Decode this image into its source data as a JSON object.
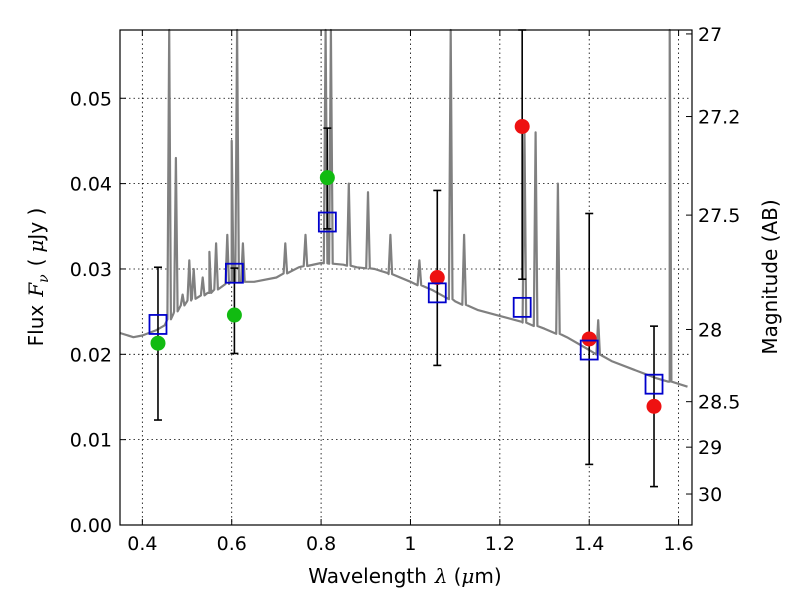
{
  "chart_data": {
    "type": "scatter",
    "title": "",
    "xlabel": {
      "main": "Wavelength",
      "symbol": "λ",
      "unit_open": "(",
      "unit_mu": "μ",
      "unit_rest": "m)"
    },
    "ylabel": {
      "main": "Flux",
      "symbol": "F",
      "sub": "ν",
      "unit_open": "(",
      "unit_mu": "μ",
      "unit_rest": "Jy )"
    },
    "y2label": "Magnitude (AB)",
    "xlim": [
      0.35,
      1.63
    ],
    "ylim": [
      0.0,
      0.058
    ],
    "grid": true,
    "x_ticks": [
      0.4,
      0.6,
      0.8,
      1.0,
      1.2,
      1.4,
      1.6
    ],
    "x_tick_labels": [
      "0.4",
      "0.6",
      "0.8",
      "1",
      "1.2",
      "1.4",
      "1.6"
    ],
    "y_ticks": [
      0.0,
      0.01,
      0.02,
      0.03,
      0.04,
      0.05
    ],
    "y_tick_labels": [
      "0.00",
      "0.01",
      "0.02",
      "0.03",
      "0.04",
      "0.05"
    ],
    "y2_ticks": [
      {
        "flux": 0.05754,
        "label": "27"
      },
      {
        "flux": 0.04786,
        "label": "27.2"
      },
      {
        "flux": 0.03631,
        "label": "27.5"
      },
      {
        "flux": 0.02291,
        "label": "28"
      },
      {
        "flux": 0.01445,
        "label": "28.5"
      },
      {
        "flux": 0.00912,
        "label": "29"
      },
      {
        "flux": 0.00363,
        "label": "30"
      }
    ],
    "series": [
      {
        "name": "observed (green)",
        "marker": "circle",
        "color": "#11bb11",
        "points": [
          {
            "x": 0.435,
            "y": 0.0213
          },
          {
            "x": 0.606,
            "y": 0.0246
          },
          {
            "x": 0.814,
            "y": 0.0407
          }
        ]
      },
      {
        "name": "observed (red)",
        "marker": "circle",
        "color": "#ee1111",
        "points": [
          {
            "x": 1.06,
            "y": 0.029
          },
          {
            "x": 1.25,
            "y": 0.0467
          },
          {
            "x": 1.4,
            "y": 0.0218
          },
          {
            "x": 1.545,
            "y": 0.0139
          }
        ]
      },
      {
        "name": "model photometry",
        "marker": "square",
        "color": "#0000cc",
        "points": [
          {
            "x": 0.435,
            "y": 0.0235
          },
          {
            "x": 0.606,
            "y": 0.0295
          },
          {
            "x": 0.814,
            "y": 0.0355
          },
          {
            "x": 1.06,
            "y": 0.0272
          },
          {
            "x": 1.25,
            "y": 0.0255
          },
          {
            "x": 1.4,
            "y": 0.0205
          },
          {
            "x": 1.545,
            "y": 0.0165
          }
        ]
      }
    ],
    "error_bars": [
      {
        "x": 0.435,
        "low": 0.0123,
        "high": 0.0302
      },
      {
        "x": 0.606,
        "low": 0.0201,
        "high": 0.0301
      },
      {
        "x": 0.814,
        "low": 0.0347,
        "high": 0.0465
      },
      {
        "x": 1.06,
        "low": 0.0187,
        "high": 0.0392
      },
      {
        "x": 1.25,
        "low": 0.0288,
        "high": 0.058
      },
      {
        "x": 1.4,
        "low": 0.0071,
        "high": 0.0365
      },
      {
        "x": 1.545,
        "low": 0.0045,
        "high": 0.0233
      }
    ],
    "sed_model": {
      "color": "#808080",
      "x": [
        0.35,
        0.38,
        0.4,
        0.43,
        0.45,
        0.47,
        0.5,
        0.55,
        0.6,
        0.65,
        0.7,
        0.75,
        0.8,
        0.85,
        0.88,
        0.92,
        0.95,
        1.0,
        1.05,
        1.1,
        1.15,
        1.2,
        1.25,
        1.3,
        1.35,
        1.4,
        1.45,
        1.5,
        1.55,
        1.58,
        1.62
      ],
      "y": [
        0.0225,
        0.022,
        0.0222,
        0.0228,
        0.0234,
        0.0248,
        0.0262,
        0.0272,
        0.0285,
        0.0285,
        0.029,
        0.0302,
        0.0307,
        0.0305,
        0.0302,
        0.03,
        0.0295,
        0.0285,
        0.0275,
        0.0262,
        0.0252,
        0.0245,
        0.0238,
        0.023,
        0.022,
        0.0205,
        0.0192,
        0.0182,
        0.0172,
        0.0168,
        0.0162
      ],
      "lines": [
        {
          "x": 0.475,
          "y": 0.043
        },
        {
          "x": 0.49,
          "y": 0.027
        },
        {
          "x": 0.505,
          "y": 0.031
        },
        {
          "x": 0.515,
          "y": 0.03
        },
        {
          "x": 0.535,
          "y": 0.029
        },
        {
          "x": 0.55,
          "y": 0.032
        },
        {
          "x": 0.565,
          "y": 0.033
        },
        {
          "x": 0.59,
          "y": 0.034
        },
        {
          "x": 0.6,
          "y": 0.045
        },
        {
          "x": 0.612,
          "y": 0.058
        },
        {
          "x": 0.625,
          "y": 0.033
        },
        {
          "x": 0.72,
          "y": 0.033
        },
        {
          "x": 0.765,
          "y": 0.034
        },
        {
          "x": 0.81,
          "y": 0.058
        },
        {
          "x": 0.822,
          "y": 0.058
        },
        {
          "x": 0.862,
          "y": 0.04
        },
        {
          "x": 0.905,
          "y": 0.039
        },
        {
          "x": 0.955,
          "y": 0.034
        },
        {
          "x": 1.02,
          "y": 0.031
        },
        {
          "x": 1.09,
          "y": 0.058
        },
        {
          "x": 1.12,
          "y": 0.034
        },
        {
          "x": 1.255,
          "y": 0.047
        },
        {
          "x": 1.28,
          "y": 0.046
        },
        {
          "x": 1.33,
          "y": 0.04
        },
        {
          "x": 1.42,
          "y": 0.024
        },
        {
          "x": 1.58,
          "y": 0.058
        }
      ],
      "peaks": [
        {
          "x": 0.46,
          "y": 0.058
        },
        {
          "x": 0.822,
          "y": 0.058
        }
      ]
    }
  }
}
